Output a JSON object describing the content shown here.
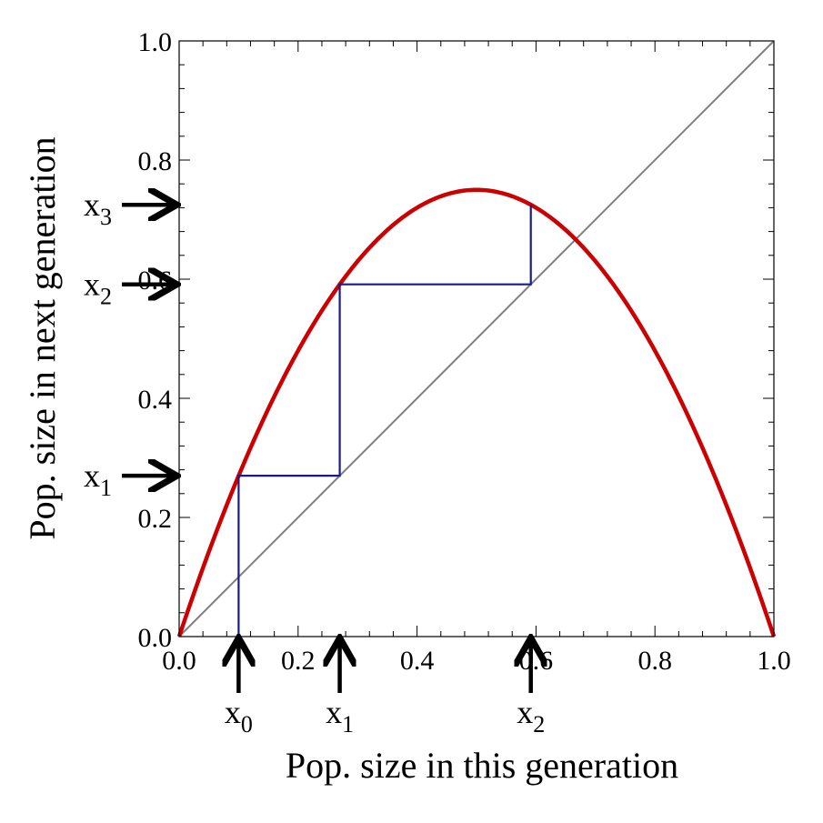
{
  "chart_data": {
    "type": "line",
    "title": "",
    "xlabel": "Pop. size in this generation",
    "ylabel": "Pop. size in next generation",
    "xlim": [
      0,
      1
    ],
    "ylim": [
      0,
      1
    ],
    "x_ticks": [
      "0.0",
      "0.2",
      "0.4",
      "0.6",
      "0.8",
      "1.0"
    ],
    "y_ticks": [
      "0.0",
      "0.2",
      "0.4",
      "0.6",
      "0.8",
      "1.0"
    ],
    "grid": false,
    "legend": "none",
    "series": [
      {
        "kind": "function",
        "formula": "y = 3x(1 - x)",
        "r": 3,
        "color": "#cc0000",
        "x": [
          0,
          0.1,
          0.2,
          0.3,
          0.4,
          0.5,
          0.6,
          0.7,
          0.8,
          0.9,
          1.0
        ],
        "y": [
          0,
          0.27,
          0.48,
          0.63,
          0.72,
          0.75,
          0.72,
          0.63,
          0.48,
          0.27,
          0
        ]
      },
      {
        "kind": "diagonal",
        "formula": "y = x",
        "color": "#808080",
        "x": [
          0,
          1
        ],
        "y": [
          0,
          1
        ]
      },
      {
        "kind": "cobweb",
        "color": "#1a1a8c",
        "x": [
          0.1,
          0.1,
          0.27,
          0.27,
          0.5913,
          0.5913
        ],
        "y": [
          0,
          0.27,
          0.27,
          0.5913,
          0.5913,
          0.7249
        ]
      }
    ],
    "annotations": {
      "x_arrows": [
        {
          "base": "x",
          "sub": "0",
          "value": 0.1
        },
        {
          "base": "x",
          "sub": "1",
          "value": 0.27
        },
        {
          "base": "x",
          "sub": "2",
          "value": 0.5913
        }
      ],
      "y_arrows": [
        {
          "base": "x",
          "sub": "1",
          "value": 0.27
        },
        {
          "base": "x",
          "sub": "2",
          "value": 0.5913
        },
        {
          "base": "x",
          "sub": "3",
          "value": 0.7249
        }
      ]
    }
  }
}
